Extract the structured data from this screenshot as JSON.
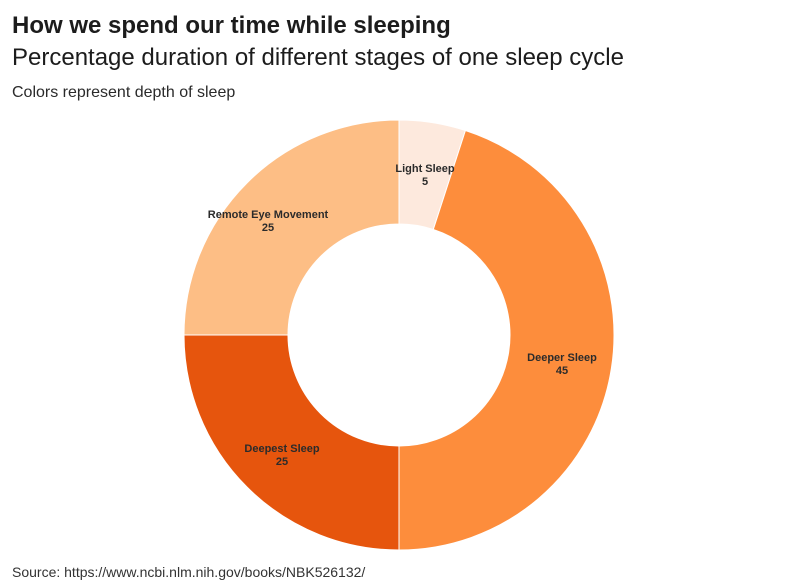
{
  "header": {
    "title": "How we spend our time while sleeping",
    "subtitle": "Percentage duration of different stages of one sleep cycle",
    "note": "Colors represent depth of sleep"
  },
  "footer": {
    "source": "Source: https://www.ncbi.nlm.nih.gov/books/NBK526132/"
  },
  "chart_data": {
    "type": "pie",
    "variant": "donut",
    "title": "How we spend our time while sleeping",
    "subtitle": "Percentage duration of different stages of one sleep cycle",
    "slices": [
      {
        "label": "Light Sleep",
        "value": 5,
        "color": "#fde9dd"
      },
      {
        "label": "Deeper Sleep",
        "value": 45,
        "color": "#fd8d3c"
      },
      {
        "label": "Deepest Sleep",
        "value": 25,
        "color": "#e6550d"
      },
      {
        "label": "Remote Eye Movement",
        "value": 25,
        "color": "#fdbe85"
      }
    ],
    "start": "12 o'clock",
    "direction": "clockwise",
    "legend": "none"
  }
}
